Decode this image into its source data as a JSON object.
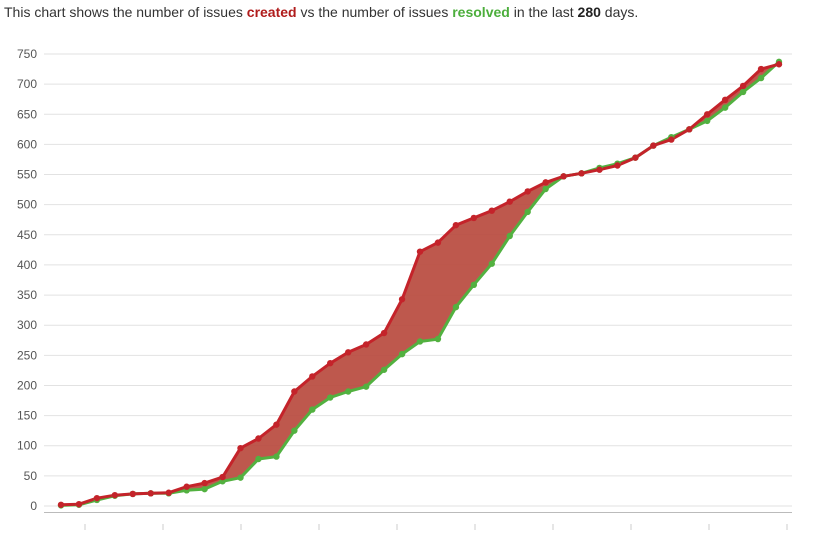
{
  "caption": {
    "prefix": "This chart shows the number of issues ",
    "created": "created",
    "middle": " vs the number of issues ",
    "resolved": "resolved",
    "suffix_before": " in the last ",
    "days": "280",
    "suffix_after": " days."
  },
  "colors": {
    "created": "#c4232a",
    "resolved": "#52b140",
    "fill": "#b84a3e",
    "grid": "#e2e2e2",
    "axis": "#bbbbbb"
  },
  "chart_data": {
    "type": "line",
    "title": "",
    "xlabel": "",
    "ylabel": "",
    "ylim": [
      0,
      750
    ],
    "grid": true,
    "legend": "none",
    "yticks": [
      "0",
      "50",
      "100",
      "150",
      "200",
      "250",
      "300",
      "350",
      "400",
      "450",
      "500",
      "550",
      "600",
      "650",
      "700",
      "750"
    ],
    "x": [
      0,
      1,
      2,
      3,
      4,
      5,
      6,
      7,
      8,
      9,
      10,
      11,
      12,
      13,
      14,
      15,
      16,
      17,
      18,
      19,
      20,
      21,
      22,
      23,
      24,
      25,
      26,
      27,
      28,
      29,
      30,
      31,
      32,
      33,
      34,
      35,
      36,
      37,
      38,
      39,
      40
    ],
    "series": [
      {
        "name": "created",
        "values": [
          2,
          3,
          13,
          18,
          20,
          21,
          22,
          32,
          38,
          48,
          96,
          112,
          135,
          190,
          215,
          237,
          255,
          268,
          287,
          343,
          422,
          437,
          466,
          478,
          490,
          505,
          522,
          537,
          547,
          552,
          558,
          565,
          578,
          598,
          608,
          625,
          650,
          674,
          697,
          725,
          733
        ]
      },
      {
        "name": "resolved",
        "values": [
          1,
          2,
          10,
          17,
          20,
          21,
          21,
          26,
          28,
          41,
          47,
          78,
          82,
          125,
          160,
          180,
          190,
          198,
          226,
          252,
          273,
          277,
          330,
          367,
          402,
          448,
          488,
          526,
          547,
          552,
          561,
          568,
          578,
          598,
          612,
          625,
          639,
          661,
          687,
          710,
          737
        ]
      }
    ]
  }
}
